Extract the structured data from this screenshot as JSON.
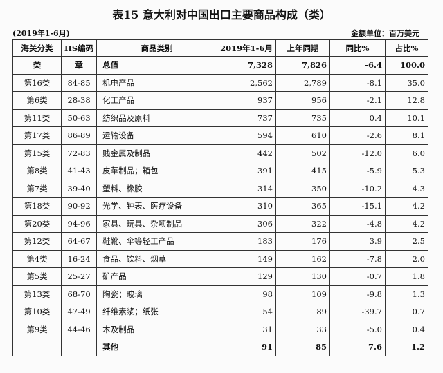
{
  "header": {
    "title": "表15  意大利对中国出口主要商品构成（类）",
    "period": "(2019年1-6月)",
    "unit": "金额单位：百万美元"
  },
  "table": {
    "header": [
      "海关分类",
      "HS编码",
      "商品类别",
      "2019年1-6月",
      "上年同期",
      "同比%",
      "占比%"
    ],
    "rows": [
      [
        "类",
        "章",
        "总值",
        "7,328",
        "7,826",
        "-6.4",
        "100.0"
      ],
      [
        "第16类",
        "84-85",
        "机电产品",
        "2,562",
        "2,789",
        "-8.1",
        "35.0"
      ],
      [
        "第6类",
        "28-38",
        "化工产品",
        "937",
        "956",
        "-2.1",
        "12.8"
      ],
      [
        "第11类",
        "50-63",
        "纺织品及原料",
        "737",
        "735",
        "0.4",
        "10.1"
      ],
      [
        "第17类",
        "86-89",
        "运输设备",
        "594",
        "610",
        "-2.6",
        "8.1"
      ],
      [
        "第15类",
        "72-83",
        "贱金属及制品",
        "442",
        "502",
        "-12.0",
        "6.0"
      ],
      [
        "第8类",
        "41-43",
        "皮革制品；箱包",
        "391",
        "415",
        "-5.9",
        "5.3"
      ],
      [
        "第7类",
        "39-40",
        "塑料、橡胶",
        "314",
        "350",
        "-10.2",
        "4.3"
      ],
      [
        "第18类",
        "90-92",
        "光学、钟表、医疗设备",
        "310",
        "365",
        "-15.1",
        "4.2"
      ],
      [
        "第20类",
        "94-96",
        "家具、玩具、杂项制品",
        "306",
        "322",
        "-4.8",
        "4.2"
      ],
      [
        "第12类",
        "64-67",
        "鞋靴、伞等轻工产品",
        "183",
        "176",
        "3.9",
        "2.5"
      ],
      [
        "第4类",
        "16-24",
        "食品、饮料、烟草",
        "149",
        "162",
        "-7.8",
        "2.0"
      ],
      [
        "第5类",
        "25-27",
        "矿产品",
        "129",
        "130",
        "-0.7",
        "1.8"
      ],
      [
        "第13类",
        "68-70",
        "陶瓷；玻璃",
        "98",
        "109",
        "-9.8",
        "1.3"
      ],
      [
        "第10类",
        "47-49",
        "纤维素浆；纸张",
        "54",
        "89",
        "-39.7",
        "0.7"
      ],
      [
        "第9类",
        "44-46",
        "木及制品",
        "31",
        "33",
        "-5.0",
        "0.4"
      ],
      [
        null,
        null,
        "其他",
        "91",
        "85",
        "7.6",
        "1.2"
      ]
    ]
  }
}
